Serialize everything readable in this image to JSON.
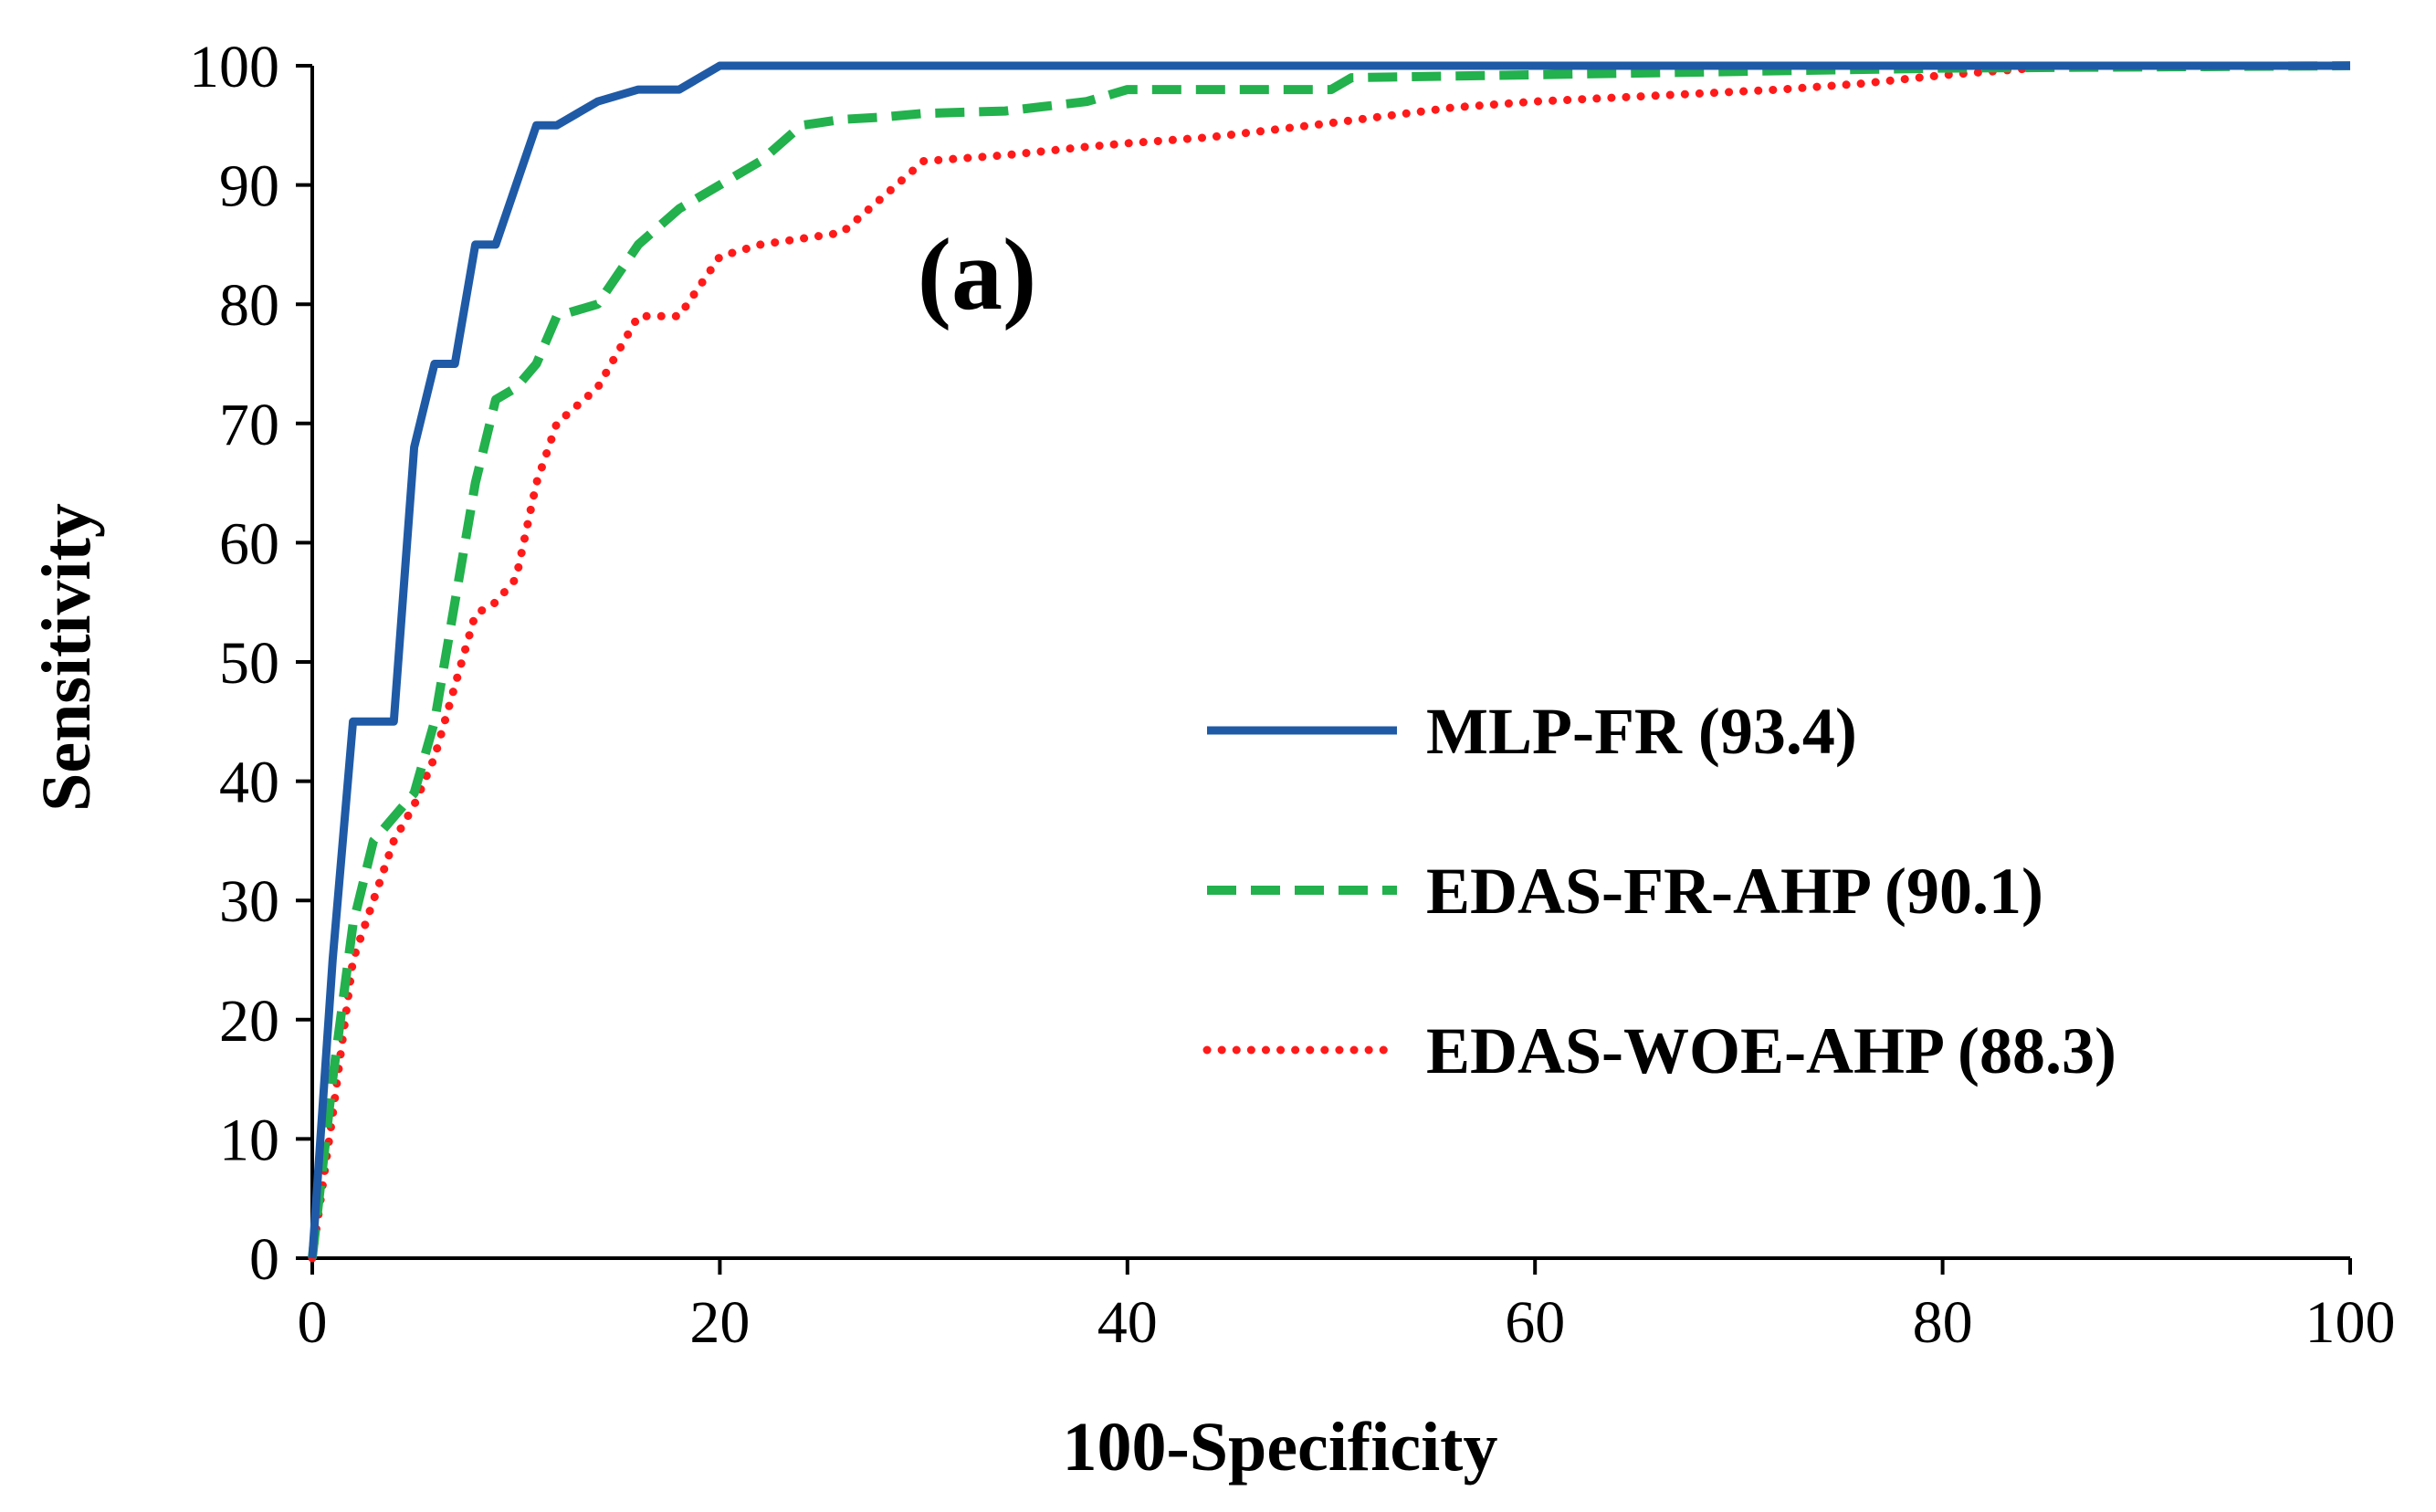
{
  "chart_data": {
    "type": "line",
    "title": "",
    "annotation": "(a)",
    "xlabel": "100-Specificity",
    "ylabel": "Sensitivity",
    "xlim": [
      0,
      100
    ],
    "ylim": [
      0,
      100
    ],
    "xticks": [
      0,
      20,
      40,
      60,
      80,
      100
    ],
    "yticks": [
      0,
      10,
      20,
      30,
      40,
      50,
      60,
      70,
      80,
      90,
      100
    ],
    "grid": false,
    "legend_position": "center-right",
    "series": [
      {
        "name": "MLP-FR (93.4)",
        "color": "#1f5aa6",
        "dash": "solid",
        "points": [
          [
            0,
            0
          ],
          [
            1,
            25
          ],
          [
            2,
            45
          ],
          [
            4,
            45
          ],
          [
            5,
            68
          ],
          [
            6,
            75
          ],
          [
            7,
            75
          ],
          [
            8,
            85
          ],
          [
            9,
            85
          ],
          [
            10,
            90
          ],
          [
            11,
            95
          ],
          [
            12,
            95
          ],
          [
            14,
            97
          ],
          [
            16,
            98
          ],
          [
            18,
            98
          ],
          [
            20,
            100
          ],
          [
            100,
            100
          ]
        ]
      },
      {
        "name": "EDAS-FR-AHP (90.1)",
        "color": "#22b14c",
        "dash": "dashed",
        "points": [
          [
            0,
            0
          ],
          [
            1,
            15
          ],
          [
            2,
            28
          ],
          [
            3,
            35
          ],
          [
            4,
            37
          ],
          [
            5,
            39
          ],
          [
            6,
            45
          ],
          [
            7,
            55
          ],
          [
            8,
            65
          ],
          [
            9,
            72
          ],
          [
            10,
            73
          ],
          [
            11,
            75
          ],
          [
            12,
            79
          ],
          [
            14,
            80
          ],
          [
            16,
            85
          ],
          [
            18,
            88
          ],
          [
            20,
            90
          ],
          [
            22,
            92
          ],
          [
            24,
            95
          ],
          [
            26,
            95.5
          ],
          [
            28,
            95.7
          ],
          [
            30,
            96
          ],
          [
            34,
            96.2
          ],
          [
            38,
            97
          ],
          [
            40,
            98
          ],
          [
            50,
            98
          ],
          [
            51,
            99
          ],
          [
            80,
            99.8
          ],
          [
            100,
            100
          ]
        ]
      },
      {
        "name": "EDAS-WOE-AHP (88.3)",
        "color": "#ff1a1a",
        "dash": "dotted",
        "points": [
          [
            0,
            0
          ],
          [
            1,
            12
          ],
          [
            2,
            25
          ],
          [
            3,
            30
          ],
          [
            4,
            35
          ],
          [
            5,
            38
          ],
          [
            6,
            42
          ],
          [
            7,
            48
          ],
          [
            8,
            54
          ],
          [
            9,
            55
          ],
          [
            10,
            57
          ],
          [
            11,
            65
          ],
          [
            12,
            70
          ],
          [
            14,
            73
          ],
          [
            16,
            79
          ],
          [
            18,
            79
          ],
          [
            20,
            84
          ],
          [
            22,
            85
          ],
          [
            24,
            85.5
          ],
          [
            26,
            86
          ],
          [
            28,
            89
          ],
          [
            30,
            92
          ],
          [
            34,
            92.5
          ],
          [
            38,
            93.2
          ],
          [
            40,
            93.5
          ],
          [
            44,
            94
          ],
          [
            50,
            95.2
          ],
          [
            56,
            96.5
          ],
          [
            60,
            97
          ],
          [
            66,
            97.5
          ],
          [
            72,
            98
          ],
          [
            76,
            98.5
          ],
          [
            80,
            99.2
          ],
          [
            86,
            100
          ],
          [
            100,
            100
          ]
        ]
      }
    ]
  }
}
